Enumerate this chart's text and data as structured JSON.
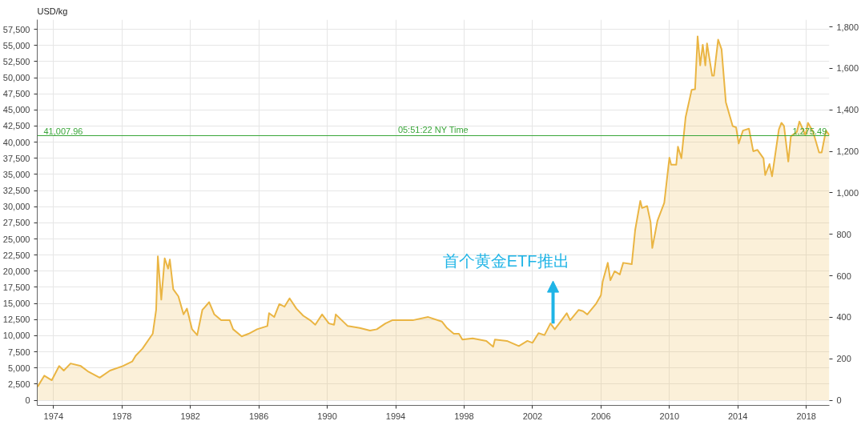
{
  "chart_data": {
    "type": "area",
    "ylabel": "USD/kg",
    "x": [
      1973.07,
      1973.46,
      1973.9,
      1974.33,
      1974.6,
      1975.0,
      1975.6,
      1976.0,
      1976.7,
      1977.3,
      1978.05,
      1978.6,
      1978.8,
      1979.2,
      1979.8,
      1980.0,
      1980.1,
      1980.3,
      1980.5,
      1980.7,
      1980.8,
      1981.0,
      1981.3,
      1981.6,
      1981.8,
      1982.1,
      1982.4,
      1982.7,
      1983.1,
      1983.4,
      1983.8,
      1984.3,
      1984.5,
      1985.0,
      1985.4,
      1985.9,
      1986.5,
      1986.6,
      1986.9,
      1987.2,
      1987.5,
      1987.8,
      1988.2,
      1988.6,
      1989.0,
      1989.3,
      1989.7,
      1990.1,
      1990.4,
      1990.5,
      1991.2,
      1991.9,
      1992.5,
      1992.9,
      1993.4,
      1993.8,
      1994.3,
      1995.0,
      1995.9,
      1996.7,
      1997.0,
      1997.4,
      1997.7,
      1997.9,
      1998.5,
      1999.3,
      1999.7,
      1999.8,
      2000.5,
      2001.2,
      2001.7,
      2002.0,
      2002.35,
      2002.7,
      2003.05,
      2003.3,
      2003.7,
      2004.0,
      2004.2,
      2004.7,
      2004.95,
      2005.2,
      2005.7,
      2006.0,
      2006.1,
      2006.4,
      2006.55,
      2006.8,
      2007.1,
      2007.3,
      2007.8,
      2008.0,
      2008.3,
      2008.4,
      2008.7,
      2008.9,
      2009.0,
      2009.3,
      2009.5,
      2009.7,
      2010.0,
      2010.1,
      2010.4,
      2010.5,
      2010.7,
      2010.95,
      2011.3,
      2011.5,
      2011.65,
      2011.8,
      2011.95,
      2012.1,
      2012.2,
      2012.5,
      2012.6,
      2012.85,
      2013.05,
      2013.3,
      2013.7,
      2013.9,
      2014.05,
      2014.3,
      2014.65,
      2014.9,
      2015.15,
      2015.5,
      2015.6,
      2015.85,
      2016.0,
      2016.4,
      2016.55,
      2016.7,
      2016.95,
      2017.1,
      2017.45,
      2017.6,
      2017.95,
      2018.1,
      2018.4,
      2018.75,
      2018.9,
      2019.15,
      2019.35
    ],
    "series": [
      {
        "color": "#eab543",
        "values": [
          2100,
          3800,
          3100,
          5300,
          4600,
          5700,
          5300,
          4500,
          3500,
          4600,
          5300,
          6000,
          6900,
          8000,
          10300,
          14000,
          22300,
          15600,
          22000,
          20400,
          21800,
          17200,
          16100,
          13300,
          14200,
          11000,
          10100,
          14000,
          15200,
          13300,
          12400,
          12400,
          11000,
          9900,
          10300,
          11000,
          11500,
          13500,
          12900,
          14900,
          14500,
          15800,
          14200,
          13100,
          12400,
          11700,
          13300,
          11900,
          11700,
          13300,
          11500,
          11200,
          10800,
          11000,
          11900,
          12400,
          12400,
          12400,
          12900,
          12200,
          11200,
          10300,
          10300,
          9400,
          9600,
          9200,
          8300,
          9400,
          9200,
          8400,
          9200,
          8900,
          10400,
          10100,
          11900,
          11000,
          12400,
          13500,
          12400,
          14000,
          13800,
          13300,
          14900,
          16300,
          18400,
          21300,
          18600,
          20000,
          19500,
          21300,
          21100,
          26400,
          30900,
          29800,
          30100,
          27600,
          23600,
          27800,
          29200,
          30600,
          37600,
          36500,
          36500,
          39300,
          37500,
          43900,
          48100,
          48200,
          56400,
          51900,
          55100,
          51900,
          55300,
          50300,
          50300,
          55900,
          54400,
          46200,
          42500,
          42300,
          39800,
          41800,
          42100,
          38600,
          38800,
          37500,
          34900,
          36600,
          34700,
          42000,
          43000,
          42500,
          37000,
          40900,
          41600,
          43200,
          41100,
          43000,
          41600,
          38400,
          38400,
          41800,
          41100
        ]
      }
    ],
    "xlim": [
      1973.05,
      2019.35
    ],
    "xticks": [
      1974,
      1978,
      1982,
      1986,
      1990,
      1994,
      1998,
      2002,
      2006,
      2010,
      2014,
      2018
    ],
    "ylim": [
      -800,
      59000
    ],
    "yticks": [
      {
        "value": 0,
        "label": "0"
      },
      {
        "value": 2500,
        "label": "2,500"
      },
      {
        "value": 5000,
        "label": "5,000"
      },
      {
        "value": 7500,
        "label": "7,500"
      },
      {
        "value": 10000,
        "label": "10,000"
      },
      {
        "value": 12500,
        "label": "12,500"
      },
      {
        "value": 15000,
        "label": "15,000"
      },
      {
        "value": 17500,
        "label": "17,500"
      },
      {
        "value": 20000,
        "label": "20,000"
      },
      {
        "value": 22500,
        "label": "22,500"
      },
      {
        "value": 25000,
        "label": "25,000"
      },
      {
        "value": 27500,
        "label": "27,500"
      },
      {
        "value": 30000,
        "label": "30,000"
      },
      {
        "value": 32500,
        "label": "32,500"
      },
      {
        "value": 35000,
        "label": "35,000"
      },
      {
        "value": 37500,
        "label": "37,500"
      },
      {
        "value": 40000,
        "label": "40,000"
      },
      {
        "value": 42500,
        "label": "42,500"
      },
      {
        "value": 45000,
        "label": "45,000"
      },
      {
        "value": 47500,
        "label": "47,500"
      },
      {
        "value": 50000,
        "label": "50,000"
      },
      {
        "value": 52500,
        "label": "52,500"
      },
      {
        "value": 55000,
        "label": "55,000"
      },
      {
        "value": 57500,
        "label": "57,500"
      }
    ],
    "y2lim": [
      -25,
      1835
    ],
    "y2ticks": [
      0,
      200,
      400,
      600,
      800,
      {
        "value": 1000,
        "label": "1,000"
      },
      {
        "value": 1200,
        "label": "1,200"
      },
      {
        "value": 1400,
        "label": "1,400"
      },
      {
        "value": 1600,
        "label": "1,600"
      },
      {
        "value": 1800,
        "label": "1,800"
      }
    ],
    "ref_lines": [
      {
        "axis": "y",
        "value": 41007.96,
        "label": "41,007.96",
        "color": "#3aa63a"
      }
    ],
    "annotations": [
      {
        "text": "05:51:22 NY Time",
        "x": 1996.2,
        "y": 41007.96
      },
      {
        "text": "1,275.49",
        "x": 2019.2,
        "y": 41007.96
      },
      {
        "text": "首个黄金ETF推出",
        "x": 2003.2,
        "y": 11900
      }
    ],
    "grid": true
  }
}
